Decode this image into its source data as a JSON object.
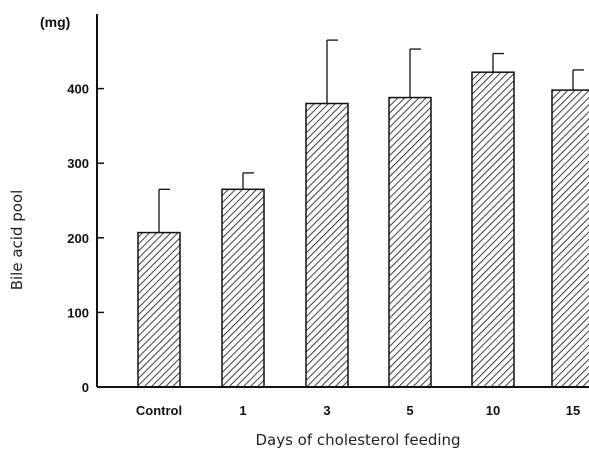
{
  "chart_data": {
    "type": "bar",
    "unit_label": "(mg)",
    "ylabel": "Bile acid pool",
    "xlabel": "Days of cholesterol feeding",
    "categories": [
      "Control",
      "1",
      "3",
      "5",
      "10",
      "15"
    ],
    "values": [
      207,
      265,
      380,
      388,
      422,
      398
    ],
    "error_upper": [
      265,
      287,
      465,
      453,
      447,
      425
    ],
    "yticks": [
      0,
      100,
      200,
      300,
      400
    ],
    "ylim": [
      0,
      500
    ],
    "grid": false,
    "legend": "none",
    "colors": {
      "bar_stroke": "#111111",
      "hatch": "#111111",
      "axis": "#111111"
    }
  }
}
